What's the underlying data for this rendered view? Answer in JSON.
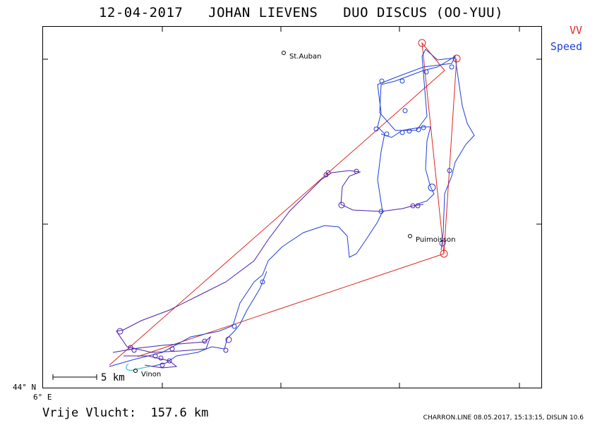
{
  "header": {
    "date": "12-04-2017",
    "pilot": "JOHAN LIEVENS",
    "glider": "DUO DISCUS (OO-YUU)"
  },
  "legend": {
    "vv_label": "VV",
    "speed_label": "Speed",
    "vv_color": "#e0251f",
    "speed_color": "#1f3fd8"
  },
  "axes": {
    "lat_label": "44° N",
    "lon_label": "6° E"
  },
  "places": [
    {
      "name": "St.Auban"
    },
    {
      "name": "Puimoisson"
    },
    {
      "name": "Vinon"
    }
  ],
  "scale": {
    "label": "5  km"
  },
  "footer": {
    "distance_text": "Vrije Vlucht:  157.6 km",
    "info": "CHARRON.LINE 08.05.2017, 15:13:15, DISLIN 10.6"
  },
  "colors": {
    "track": "#1f3fd8",
    "track_alt": "#4b1fa8",
    "task": "#e0251f",
    "start_track": "#1fb7c8"
  }
}
